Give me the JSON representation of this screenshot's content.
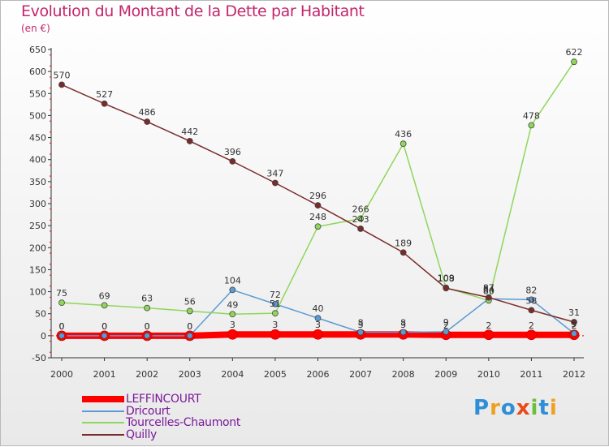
{
  "chart_data": {
    "type": "line",
    "title": "Evolution du Montant de la Dette par Habitant",
    "subtitle": "(en €)",
    "x": [
      "2000",
      "2001",
      "2002",
      "2003",
      "2004",
      "2005",
      "2006",
      "2007",
      "2008",
      "2009",
      "2010",
      "2011",
      "2012"
    ],
    "ylim": [
      -50,
      650
    ],
    "yticks": [
      -50,
      0,
      50,
      100,
      150,
      200,
      250,
      300,
      350,
      400,
      450,
      500,
      550,
      600,
      650
    ],
    "grid": false,
    "legend": "bottom-left",
    "series": [
      {
        "name": "LEFFINCOURT",
        "color": "#ff0000",
        "values": [
          0,
          0,
          0,
          0,
          3,
          3,
          3,
          3,
          3,
          2,
          2,
          2,
          2
        ]
      },
      {
        "name": "Dricourt",
        "color": "#5b9bd5",
        "values": [
          0,
          0,
          0,
          0,
          104,
          72,
          40,
          8,
          8,
          9,
          84,
          82,
          5
        ]
      },
      {
        "name": "Tourcelles-Chaumont",
        "color": "#8fd65a",
        "values": [
          75,
          69,
          63,
          56,
          49,
          51,
          248,
          266,
          436,
          109,
          80,
          478,
          622
        ]
      },
      {
        "name": "Quilly",
        "color": "#7a2b2b",
        "values": [
          570,
          527,
          486,
          442,
          396,
          347,
          296,
          243,
          189,
          108,
          87,
          58,
          31
        ]
      }
    ]
  },
  "logo": {
    "p": "P",
    "r": "r",
    "o": "o",
    "x": "x",
    "i1": "i",
    "t": "t",
    "i2": "i"
  }
}
